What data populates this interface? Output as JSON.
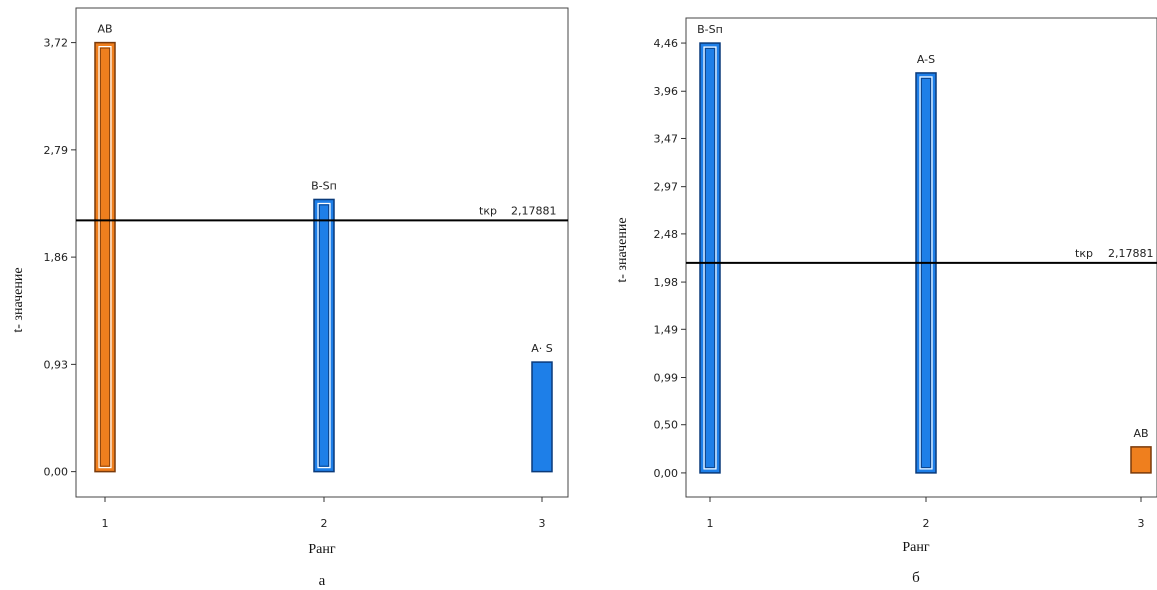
{
  "colors": {
    "orange": "#ef7f1e",
    "orange_edge": "#7a3a0a",
    "blue": "#1e7fe8",
    "blue_edge": "#0a3a7a",
    "frame": "#444444",
    "threshold_line": "#000000"
  },
  "chart_data": [
    {
      "type": "bar",
      "panel_label": "а",
      "xlabel": "Ранг",
      "ylabel": "t- значение",
      "categories": [
        "1",
        "2",
        "3"
      ],
      "bars": [
        {
          "rank": 1,
          "label": "AB",
          "value": 3.72,
          "color": "orange",
          "style": "outlined"
        },
        {
          "rank": 2,
          "label": "B-Sп",
          "value": 2.36,
          "color": "blue",
          "style": "outlined"
        },
        {
          "rank": 3,
          "label": "A· S",
          "value": 0.95,
          "color": "blue",
          "style": "solid"
        }
      ],
      "yticks": [
        "0,00",
        "0,93",
        "1,86",
        "2,79",
        "3,72"
      ],
      "ytick_values": [
        0,
        0.93,
        1.86,
        2.79,
        3.72
      ],
      "ylim": [
        -0.22,
        4.02
      ],
      "threshold": {
        "label": "tкр",
        "value_text": "2,17881",
        "value": 2.17881
      }
    },
    {
      "type": "bar",
      "panel_label": "б",
      "xlabel": "Ранг",
      "ylabel": "t- значение",
      "categories": [
        "1",
        "2",
        "3"
      ],
      "bars": [
        {
          "rank": 1,
          "label": "B-Sп",
          "value": 4.46,
          "color": "blue",
          "style": "outlined"
        },
        {
          "rank": 2,
          "label": "A-S",
          "value": 4.15,
          "color": "blue",
          "style": "outlined"
        },
        {
          "rank": 3,
          "label": "AB",
          "value": 0.27,
          "color": "orange",
          "style": "solid"
        }
      ],
      "yticks": [
        "0,00",
        "0,50",
        "0,99",
        "1,49",
        "1,98",
        "2,48",
        "2,97",
        "3,47",
        "3,96",
        "4,46"
      ],
      "ytick_values": [
        0,
        0.5,
        0.99,
        1.49,
        1.98,
        2.48,
        2.97,
        3.47,
        3.96,
        4.46
      ],
      "ylim": [
        -0.25,
        4.72
      ],
      "threshold": {
        "label": "tкр",
        "value_text": "2,17881",
        "value": 2.17881
      }
    }
  ]
}
